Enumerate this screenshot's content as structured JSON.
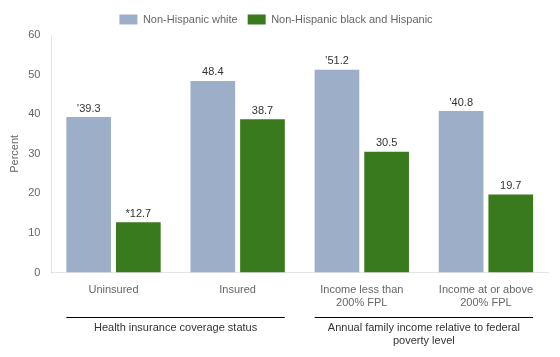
{
  "chart_data": {
    "type": "bar",
    "categories": [
      "Uninsured",
      "Insured",
      "Income less than\n200% FPL",
      "Income at or above\n200% FPL"
    ],
    "series": [
      {
        "name": "Non-Hispanic white",
        "color": "#9daec9",
        "values": [
          39.3,
          48.4,
          51.2,
          40.8
        ],
        "value_labels": [
          "ʼ39.3",
          "48.4",
          "ʼ51.2",
          "ʼ40.8"
        ]
      },
      {
        "name": "Non-Hispanic black and Hispanic",
        "color": "#3a7a1e",
        "values": [
          12.7,
          38.7,
          30.5,
          19.7
        ],
        "value_labels": [
          "*12.7",
          "38.7",
          "30.5",
          "19.7"
        ]
      }
    ],
    "y_label": "Percent",
    "ylim": [
      0,
      60
    ],
    "yticks": [
      0,
      10,
      20,
      30,
      40,
      50,
      60
    ],
    "grid": false,
    "legend": "top",
    "data_labels": true,
    "annotations": [
      {
        "text": "Health insurance coverage status",
        "categories": [
          "Uninsured",
          "Insured"
        ]
      },
      {
        "text": "Annual family income relative to federal\npoverty level",
        "categories": [
          "Income less than\n200% FPL",
          "Income at or above\n200% FPL"
        ]
      }
    ]
  }
}
